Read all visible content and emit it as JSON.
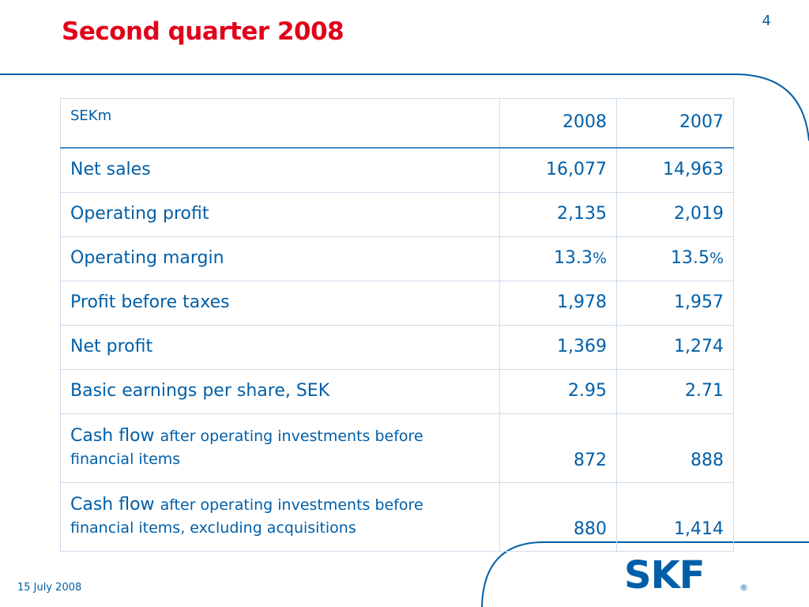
{
  "slide": {
    "title": "Second quarter 2008",
    "page_number": "4",
    "date": "15 July 2008"
  },
  "table": {
    "header": {
      "label": "SEKm",
      "col1": "2008",
      "col2": "2007"
    },
    "rows": [
      {
        "label": "Net sales",
        "v2008": "16,077",
        "v2007": "14,963"
      },
      {
        "label": "Operating profit",
        "v2008": "2,135",
        "v2007": "2,019"
      },
      {
        "label": "Operating margin",
        "v2008_num": "13.3",
        "v2008_unit": "%",
        "v2007_num": "13.5",
        "v2007_unit": "%"
      },
      {
        "label": "Profit before taxes",
        "v2008": "1,978",
        "v2007": "1,957"
      },
      {
        "label": "Net profit",
        "v2008": "1,369",
        "v2007": "1,274"
      },
      {
        "label": "Basic earnings per share, SEK",
        "v2008": "2.95",
        "v2007": "2.71"
      },
      {
        "label_main": "Cash flow",
        "label_sub": "after operating investments before financial items",
        "v2008": "872",
        "v2007": "888"
      },
      {
        "label_main": "Cash flow",
        "label_sub": "after operating investments before financial items, excluding acquisitions",
        "v2008": "880",
        "v2007": "1,414"
      }
    ]
  },
  "logo": {
    "text": "SKF",
    "mark": "®"
  },
  "colors": {
    "title_red": "#e2001a",
    "brand_blue": "#005fa8",
    "grid": "#cfdceb"
  }
}
